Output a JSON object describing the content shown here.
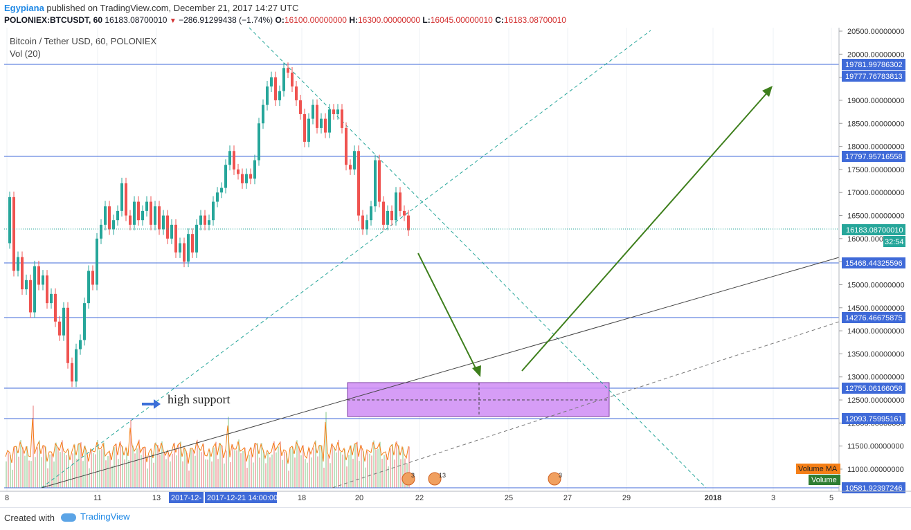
{
  "header": {
    "author": "Egypiana",
    "published_text": "published on TradingView.com, December 21, 2017 14:27 UTC",
    "symbol": "POLONIEX:BTCUSDT, 60",
    "last": "16183.08700010",
    "change": "−286.91299438 (−1.74%)",
    "o_label": "O:",
    "o": "16100.00000000",
    "h_label": "H:",
    "h": "16300.00000000",
    "l_label": "L:",
    "l": "16045.00000010",
    "c_label": "C:",
    "c": "16183.08700010"
  },
  "legend": {
    "title": "Bitcoin / Tether USD, 60, POLONIEX",
    "vol": "Vol (20)"
  },
  "price_axis": {
    "ticks": [
      "20500.00000000",
      "20000.00000000",
      "19500.00000000",
      "19000.00000000",
      "18500.00000000",
      "18000.00000000",
      "17500.00000000",
      "17000.00000000",
      "16500.00000000",
      "16000.00000000",
      "15500.00000000",
      "15000.00000000",
      "14500.00000000",
      "14000.00000000",
      "13500.00000000",
      "13000.00000000",
      "12500.00000000",
      "12000.00000000",
      "11500.00000000",
      "11000.00000000"
    ]
  },
  "levels": [
    {
      "label": "19781.99786302"
    },
    {
      "label": "19777.76783813"
    },
    {
      "label": "17797.95716558"
    },
    {
      "label": "15468.44325596"
    },
    {
      "label": "14276.46675875"
    },
    {
      "label": "12755.06166058"
    },
    {
      "label": "12093.75995161"
    },
    {
      "label": "10581.92397246"
    }
  ],
  "last_price": {
    "label": "16183.08700010",
    "countdown": "32:54",
    "color": "#26a69a"
  },
  "volume_labels": {
    "ma": "Volume MA",
    "vol": "Volume"
  },
  "time_axis": {
    "ticks": [
      "8",
      "11",
      "13",
      "18",
      "20",
      "22",
      "25",
      "27",
      "29",
      "2018",
      "3",
      "5"
    ],
    "highlight1": "2017-12-",
    "highlight2": "2017-12-21 14:00:00"
  },
  "annotation": {
    "text": "high support"
  },
  "events": [
    "3",
    "13",
    "3"
  ],
  "colors": {
    "up": "#26a69a",
    "down": "#ef5350",
    "level": "#3f6ad8",
    "arrow": "#3e7f1c",
    "zone": "#cf8cf5",
    "trend": "#26a69a"
  },
  "footer": {
    "created": "Created with",
    "brand": "TradingView"
  }
}
